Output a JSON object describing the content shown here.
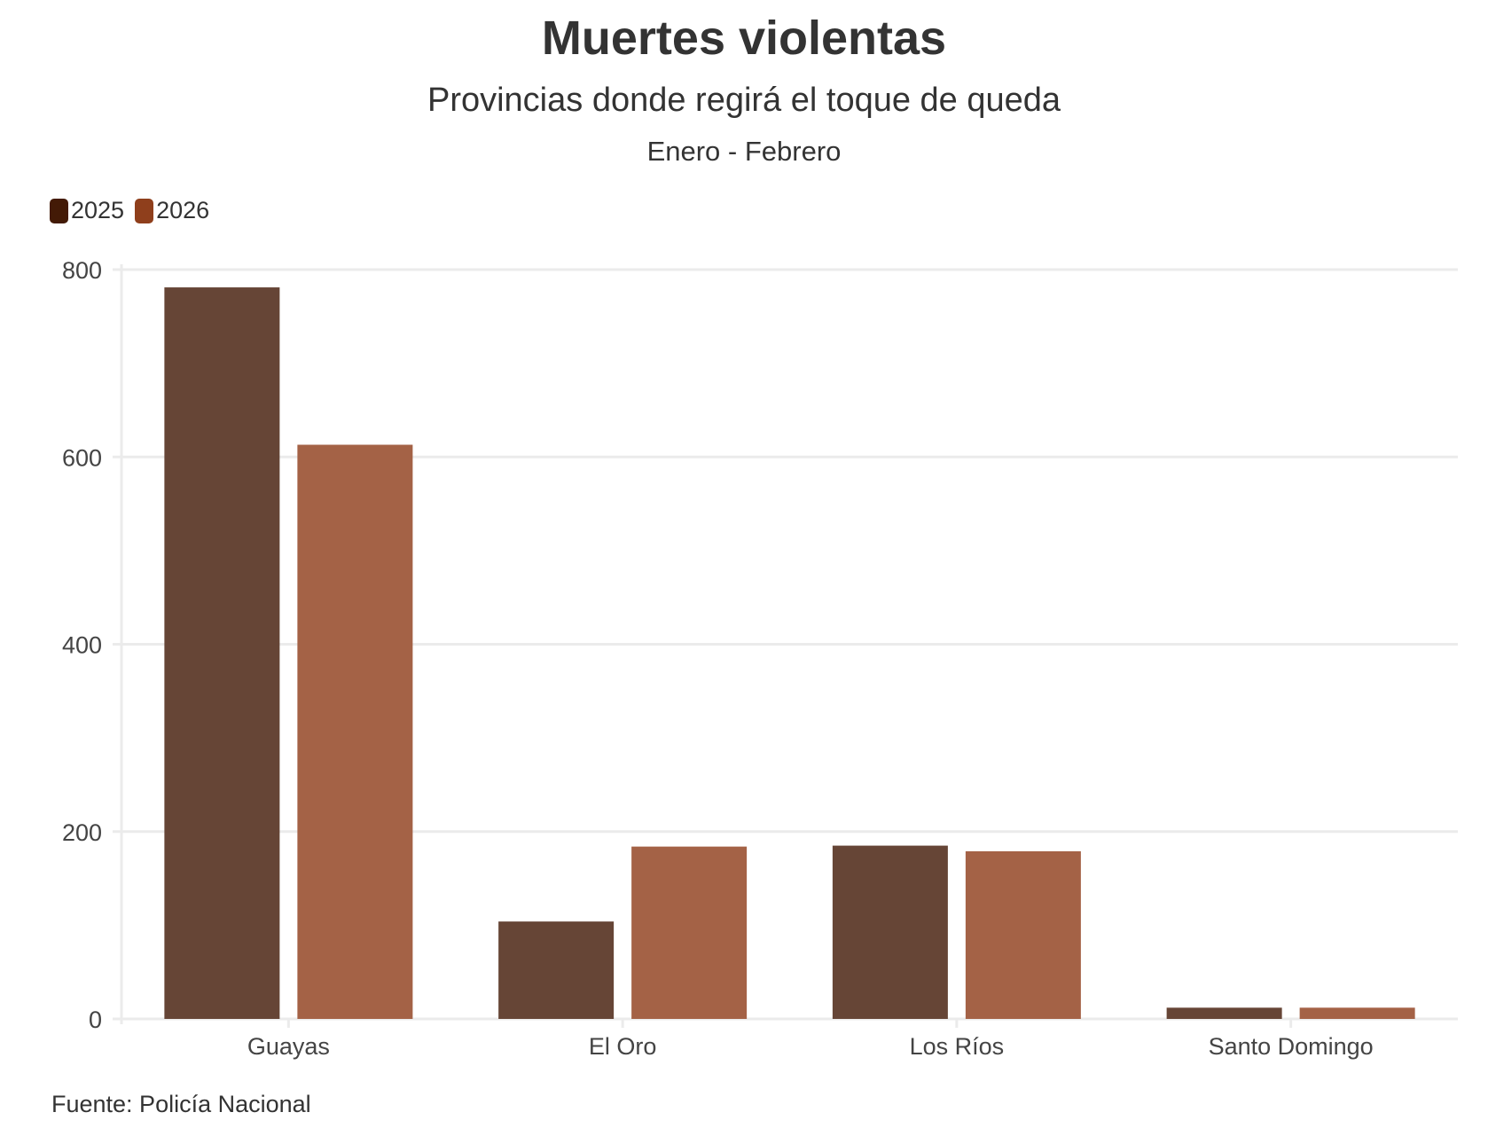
{
  "chart_data": {
    "type": "bar",
    "title": "Muertes violentas",
    "subtitle": "Provincias donde regirá el toque de queda",
    "period": "Enero - Febrero",
    "categories": [
      "Guayas",
      "El Oro",
      "Los Ríos",
      "Santo Domingo"
    ],
    "series": [
      {
        "name": "2025",
        "color": "#431a06",
        "bar_color": "#664536",
        "values": [
          781,
          104,
          185,
          12
        ]
      },
      {
        "name": "2026",
        "color": "#8f3f1c",
        "bar_color": "#a46246",
        "values": [
          613,
          184,
          179,
          12
        ]
      }
    ],
    "ylim": [
      0,
      800
    ],
    "yticks": [
      0,
      200,
      400,
      600,
      800
    ],
    "grid": true,
    "legend_position": "top-left",
    "source": "Fuente: Policía Nacional"
  }
}
